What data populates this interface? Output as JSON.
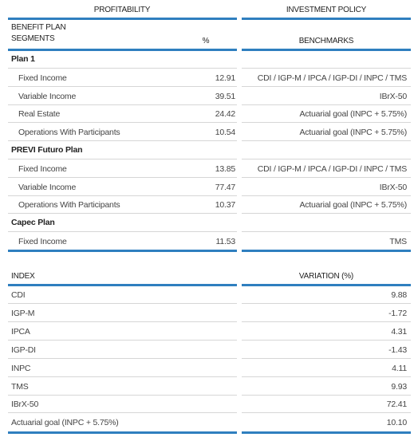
{
  "table1": {
    "profitability_header": "PROFITABILITY",
    "investment_policy_header": "INVESTMENT POLICY",
    "columns": [
      "BENEFIT PLAN\nSEGMENTS",
      "%",
      "BENCHMARKS"
    ],
    "groups": [
      {
        "name": "Plan 1",
        "rows": [
          [
            "Fixed Income",
            "12.91",
            "CDI / IGP-M / IPCA / IGP-DI / INPC / TMS"
          ],
          [
            "Variable Income",
            "39.51",
            "IBrX-50"
          ],
          [
            "Real Estate",
            "24.42",
            "Actuarial goal (INPC + 5.75%)"
          ],
          [
            "Operations With Participants",
            "10.54",
            "Actuarial goal (INPC + 5.75%)"
          ]
        ]
      },
      {
        "name": "PREVI Futuro Plan",
        "rows": [
          [
            "Fixed Income",
            "13.85",
            "CDI / IGP-M / IPCA / IGP-DI / INPC / TMS"
          ],
          [
            "Variable Income",
            "77.47",
            "IBrX-50"
          ],
          [
            "Operations With Participants",
            "10.37",
            "Actuarial goal (INPC + 5.75%)"
          ]
        ]
      },
      {
        "name": "Capec Plan",
        "rows": [
          [
            "Fixed Income",
            "11.53",
            "TMS"
          ]
        ]
      }
    ]
  },
  "table2": {
    "columns": [
      "INDEX",
      "VARIATION (%)"
    ],
    "rows": [
      [
        "CDI",
        "9.88"
      ],
      [
        "IGP-M",
        "-1.72"
      ],
      [
        "IPCA",
        "4.31"
      ],
      [
        "IGP-DI",
        "-1.43"
      ],
      [
        "INPC",
        "4.11"
      ],
      [
        "TMS",
        "9.93"
      ],
      [
        "IBrX-50",
        "72.41"
      ],
      [
        "Actuarial goal (INPC + 5.75%)",
        "10.10"
      ]
    ]
  }
}
